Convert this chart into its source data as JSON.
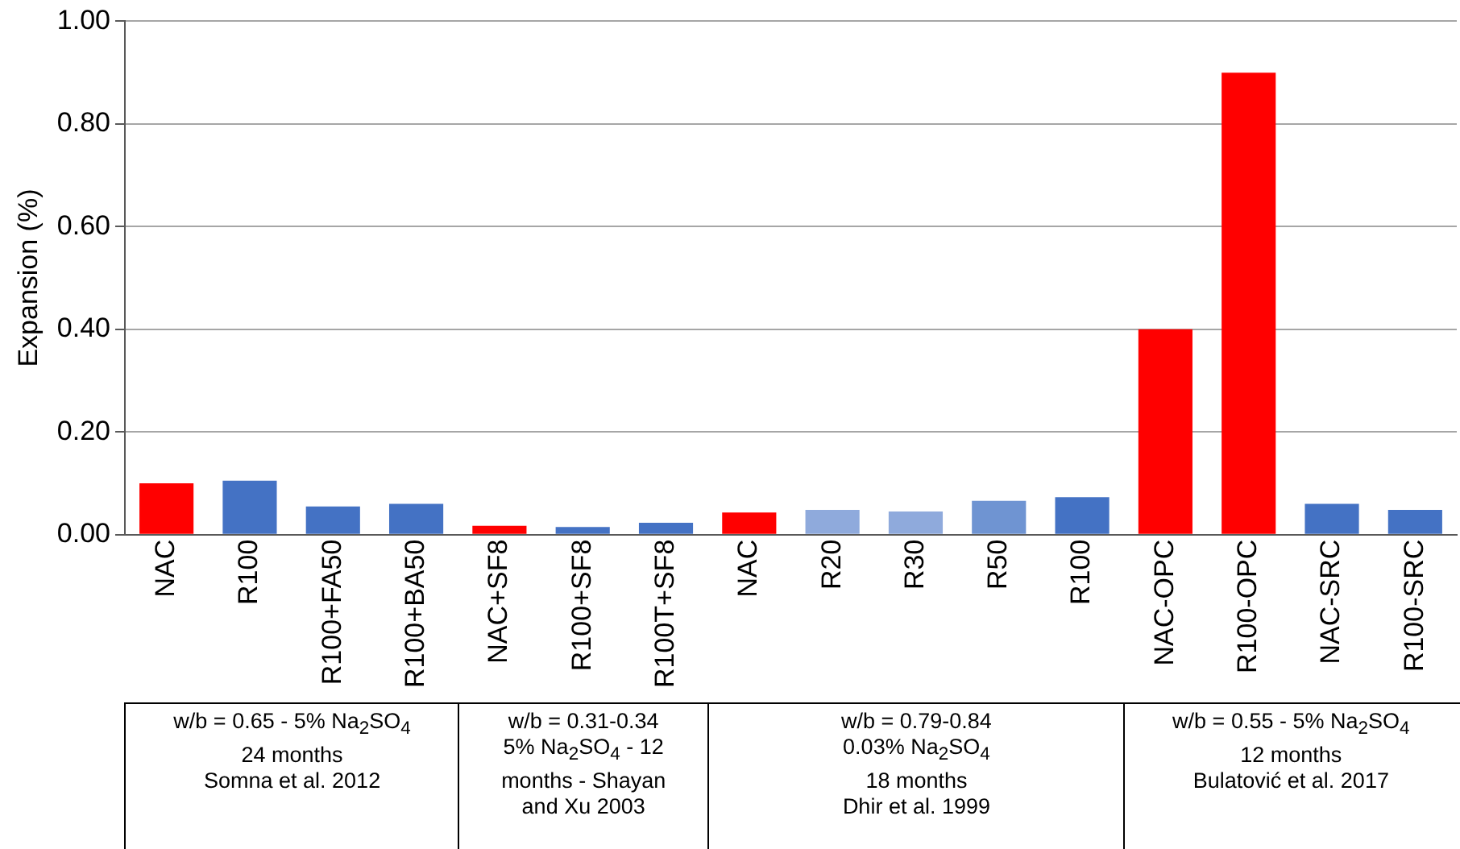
{
  "chart_data": {
    "type": "bar",
    "ylabel": "Expansion (%)",
    "categories": [
      "NAC",
      "R100",
      "R100+FA50",
      "R100+BA50",
      "NAC+SF8",
      "R100+SF8",
      "R100T+SF8",
      "NAC",
      "R20",
      "R30",
      "R50",
      "R100",
      "NAC-OPC",
      "R100-OPC",
      "NAC-SRC",
      "R100-SRC"
    ],
    "values": [
      0.1,
      0.105,
      0.055,
      0.06,
      0.017,
      0.015,
      0.023,
      0.043,
      0.048,
      0.045,
      0.066,
      0.073,
      0.4,
      0.9,
      0.06,
      0.048
    ],
    "colors": [
      "#ff0000",
      "#4472c4",
      "#4472c4",
      "#4472c4",
      "#ff0000",
      "#4472c4",
      "#4472c4",
      "#ff0000",
      "#8faadc",
      "#8faadc",
      "#6f94d2",
      "#4472c4",
      "#ff0000",
      "#ff0000",
      "#4472c4",
      "#4472c4"
    ],
    "ylim": [
      0,
      1
    ],
    "yticks": [
      {
        "value": 0,
        "label": "0.00"
      },
      {
        "value": 0.2,
        "label": "0.20"
      },
      {
        "value": 0.4,
        "label": "0.40"
      },
      {
        "value": 0.6,
        "label": "0.60"
      },
      {
        "value": 0.8,
        "label": "0.80"
      },
      {
        "value": 1,
        "label": "1.00"
      }
    ],
    "grid": "y",
    "legend": false,
    "annotations": [
      "w/b = 0.65 - 5% Na$_{2}$SO$_{4}$\n24 months\nSomna et al. 2012",
      "w/b = 0.31-0.34\n5% Na$_{2}$SO$_{4}$ - 12\nmonths - Shayan\nand Xu 2003",
      "w/b = 0.79-0.84\n0.03% Na$_{2}$SO$_{4}$\n18 months\nDhir et al. 1999",
      "w/b = 0.55 - 5% Na$_{2}$SO$_{4}$\n12 months\nBulatović et al. 2017"
    ]
  }
}
